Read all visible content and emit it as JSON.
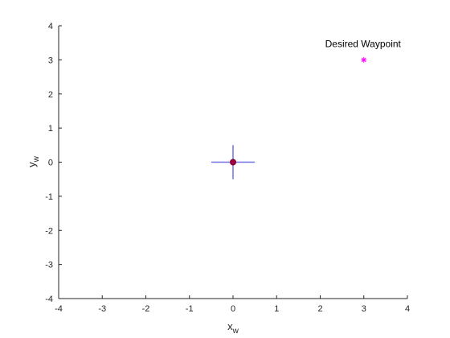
{
  "chart_data": {
    "type": "scatter",
    "xlim": [
      -4,
      4
    ],
    "ylim": [
      -4,
      4
    ],
    "x_ticks": [
      "-4",
      "-3",
      "-2",
      "-1",
      "0",
      "1",
      "2",
      "3",
      "4"
    ],
    "y_ticks": [
      "4",
      "3",
      "2",
      "1",
      "0",
      "-1",
      "-2",
      "-3",
      "-4"
    ],
    "xlabel": {
      "main": "x",
      "sub": "w"
    },
    "ylabel": {
      "main": "y",
      "sub": "w"
    },
    "grid": false,
    "vehicle": {
      "position": {
        "x": 0,
        "y": 0
      },
      "arm_length": 0.5,
      "arm_color": "#7070e0",
      "marker_fill": "#a00040",
      "marker_edge": "#7a0030"
    },
    "waypoint": {
      "position": {
        "x": 3,
        "y": 3
      },
      "color": "#ff00ff",
      "label": "Desired Waypoint"
    }
  }
}
